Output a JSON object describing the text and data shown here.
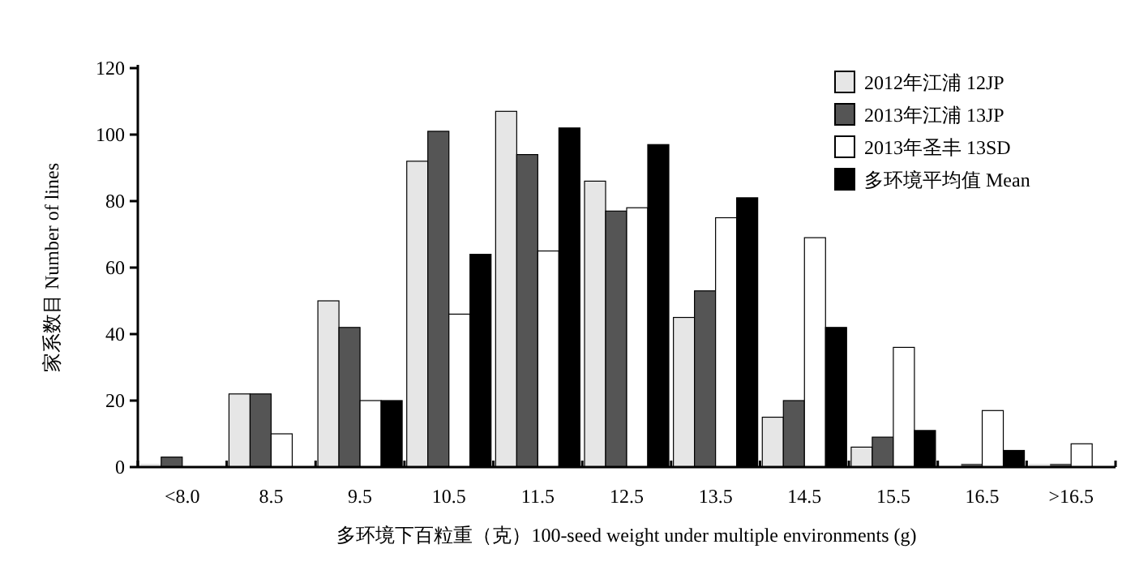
{
  "chart_data": {
    "type": "bar",
    "categories": [
      "<8.0",
      "8.5",
      "9.5",
      "10.5",
      "11.5",
      "12.5",
      "13.5",
      "14.5",
      "15.5",
      "16.5",
      ">16.5"
    ],
    "series": [
      {
        "name": "2012年江浦 12JP",
        "color": "#e6e6e6",
        "values": [
          1,
          22,
          50,
          92,
          107,
          86,
          45,
          15,
          6,
          0,
          1
        ]
      },
      {
        "name": "2013年江浦 13JP",
        "color": "#555555",
        "values": [
          3,
          22,
          42,
          101,
          94,
          77,
          53,
          20,
          9,
          1,
          1
        ]
      },
      {
        "name": "2013年圣丰 13SD",
        "color": "#ffffff",
        "values": [
          0,
          10,
          20,
          46,
          65,
          78,
          75,
          69,
          36,
          17,
          7
        ]
      },
      {
        "name": "多环境平均值 Mean",
        "color": "#000000",
        "values": [
          0,
          0,
          20,
          64,
          102,
          97,
          81,
          42,
          11,
          5,
          0
        ]
      }
    ],
    "ylim": [
      0,
      120
    ],
    "yticks": [
      0,
      20,
      40,
      60,
      80,
      100,
      120
    ],
    "xlabel": "多环境下百粒重（克）100-seed weight under multiple environments (g)",
    "ylabel": "家系数目 Number of lines",
    "legend": "top right",
    "grid": false
  }
}
